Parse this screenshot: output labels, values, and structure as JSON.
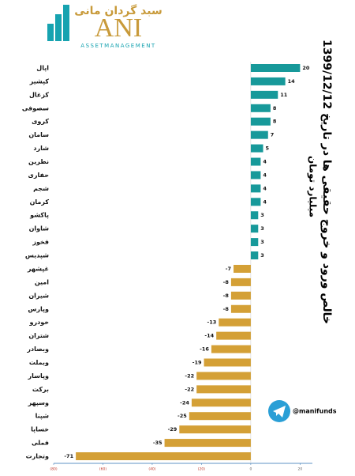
{
  "logo": {
    "persian": "سبد گردان مانی",
    "latin": "ANI",
    "tagline": "ASSETMANAGEMENT"
  },
  "chart_data": {
    "type": "hbar",
    "title": "خالص ورود و خروج حقیقی ها در تاریخ 1399/12/12",
    "subtitle": "میلیارد تومان",
    "categories": [
      "اپال",
      "کپشیر",
      "کزغال",
      "سصوفی",
      "کروی",
      "سامان",
      "شارد",
      "نطرین",
      "حفاری",
      "شجم",
      "کرمان",
      "پاکشو",
      "شاوان",
      "فخوز",
      "شپدیس",
      "غپشهر",
      "امین",
      "شیران",
      "وپارس",
      "خودرو",
      "شتران",
      "وبصادر",
      "وبملت",
      "وپاسار",
      "برکت",
      "وسپهر",
      "شپنا",
      "خساپا",
      "فملی",
      "وتجارت"
    ],
    "values": [
      20,
      14,
      11,
      8,
      8,
      7,
      5,
      4,
      4,
      4,
      4,
      3,
      3,
      3,
      3,
      -7,
      -8,
      -8,
      -8,
      -13,
      -14,
      -16,
      -19,
      -22,
      -22,
      -24,
      -25,
      -29,
      -35,
      -71
    ],
    "positive_color": "#17999a",
    "negative_color": "#d4a036",
    "xlim": [
      -80,
      25
    ],
    "xticks": [
      {
        "value": -80,
        "label": "(80)"
      },
      {
        "value": -60,
        "label": "(60)"
      },
      {
        "value": -40,
        "label": "(40)"
      },
      {
        "value": -20,
        "label": "(20)"
      },
      0,
      20
    ]
  },
  "telegram": "@manifunds"
}
